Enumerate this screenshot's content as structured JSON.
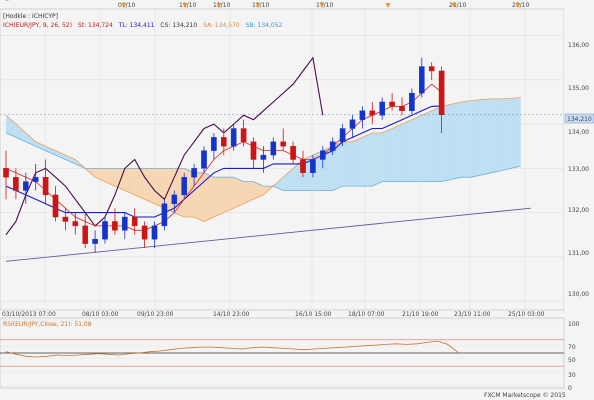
{
  "header": {
    "prefix": "[Hodkle : ICHICYP]",
    "ichimoku": "ICH(EUR/JPY, 9, 26, 52)",
    "st": "St: 134,724",
    "tl": "TL: 134,411",
    "cs": "CS: 134,210",
    "sa": "SA: 134,570",
    "sb": "SB: 134,052"
  },
  "colors": {
    "background": "#f4f4f4",
    "candle_up": "#1535c8",
    "candle_down": "#cc1515",
    "tenkan": "#dd2222",
    "kijun": "#1a1ac8",
    "chikou": "#4a0a4a",
    "cloud_bull": "#bfe0f3",
    "cloud_bear": "#f7d7b3",
    "span_a": "#e9a25e",
    "span_b": "#6ab0d9",
    "trend": "#6a5aa0",
    "rsi_line": "#c7722d",
    "level_red": "#e07070",
    "level_black": "#333333",
    "current_price_bg": "#c9dcf5"
  },
  "top_axis": {
    "labels": [
      "09/10",
      "11/10",
      "13/10",
      "15/10",
      "17/10",
      "23/10",
      "25/10"
    ],
    "marker_icon": "triangle-down-icon"
  },
  "price_axis": {
    "labels": [
      "136,00",
      "135,00",
      "134,00",
      "133,00",
      "132,00",
      "131,00",
      "130,00"
    ],
    "current_price": "134,210"
  },
  "bottom_axis": {
    "labels": [
      "03/10/2013 07:00",
      "08/10 03:00",
      "09/10 23:00",
      "14/10 23:00",
      "16/10 15:00",
      "18/10 07:00",
      "21/10 19:00",
      "23/10 11:00",
      "25/10 03:00"
    ]
  },
  "rsi": {
    "title": "RSI(EUR/JPY,Close, 21): 51,08",
    "scale_labels": [
      "100",
      "70",
      "50",
      "30",
      "0"
    ]
  },
  "watermark": "FXCM Marketscope © 2015",
  "chart_data": {
    "type": "candlestick",
    "x_labels": [
      "03/10/2013 07:00",
      "08/10 03:00",
      "09/10 23:00",
      "14/10 23:00",
      "16/10 15:00",
      "18/10 07:00",
      "21/10 19:00",
      "23/10 11:00",
      "25/10 03:00"
    ],
    "ylim": [
      129.8,
      136.6
    ],
    "grid": true,
    "candles": [
      {
        "o": 133.0,
        "h": 133.4,
        "l": 132.3,
        "c": 132.8
      },
      {
        "o": 132.8,
        "h": 133.0,
        "l": 132.3,
        "c": 132.5
      },
      {
        "o": 132.5,
        "h": 132.9,
        "l": 132.2,
        "c": 132.7
      },
      {
        "o": 132.7,
        "h": 133.1,
        "l": 132.5,
        "c": 132.8
      },
      {
        "o": 132.8,
        "h": 133.2,
        "l": 132.2,
        "c": 132.4
      },
      {
        "o": 132.4,
        "h": 132.6,
        "l": 131.8,
        "c": 131.9
      },
      {
        "o": 131.9,
        "h": 132.1,
        "l": 131.6,
        "c": 131.8
      },
      {
        "o": 131.8,
        "h": 132.0,
        "l": 131.5,
        "c": 131.7
      },
      {
        "o": 131.7,
        "h": 132.0,
        "l": 131.2,
        "c": 131.3
      },
      {
        "o": 131.3,
        "h": 131.6,
        "l": 131.1,
        "c": 131.4
      },
      {
        "o": 131.4,
        "h": 131.9,
        "l": 131.3,
        "c": 131.8
      },
      {
        "o": 131.8,
        "h": 132.1,
        "l": 131.5,
        "c": 131.6
      },
      {
        "o": 131.6,
        "h": 132.0,
        "l": 131.4,
        "c": 131.9
      },
      {
        "o": 131.9,
        "h": 132.1,
        "l": 131.5,
        "c": 131.7
      },
      {
        "o": 131.7,
        "h": 131.8,
        "l": 131.2,
        "c": 131.4
      },
      {
        "o": 131.4,
        "h": 131.8,
        "l": 131.2,
        "c": 131.7
      },
      {
        "o": 131.7,
        "h": 132.3,
        "l": 131.6,
        "c": 132.2
      },
      {
        "o": 132.2,
        "h": 132.5,
        "l": 132.0,
        "c": 132.4
      },
      {
        "o": 132.4,
        "h": 132.9,
        "l": 132.3,
        "c": 132.8
      },
      {
        "o": 132.8,
        "h": 133.1,
        "l": 132.6,
        "c": 133.0
      },
      {
        "o": 133.0,
        "h": 133.5,
        "l": 132.9,
        "c": 133.4
      },
      {
        "o": 133.4,
        "h": 133.8,
        "l": 133.2,
        "c": 133.7
      },
      {
        "o": 133.7,
        "h": 133.9,
        "l": 133.3,
        "c": 133.5
      },
      {
        "o": 133.5,
        "h": 134.0,
        "l": 133.4,
        "c": 133.9
      },
      {
        "o": 133.9,
        "h": 134.1,
        "l": 133.5,
        "c": 133.6
      },
      {
        "o": 133.6,
        "h": 133.7,
        "l": 133.0,
        "c": 133.2
      },
      {
        "o": 133.2,
        "h": 133.5,
        "l": 132.9,
        "c": 133.3
      },
      {
        "o": 133.3,
        "h": 133.7,
        "l": 133.2,
        "c": 133.6
      },
      {
        "o": 133.6,
        "h": 133.9,
        "l": 133.4,
        "c": 133.5
      },
      {
        "o": 133.5,
        "h": 133.6,
        "l": 133.1,
        "c": 133.2
      },
      {
        "o": 133.2,
        "h": 133.4,
        "l": 132.8,
        "c": 132.9
      },
      {
        "o": 132.9,
        "h": 133.3,
        "l": 132.8,
        "c": 133.2
      },
      {
        "o": 133.2,
        "h": 133.5,
        "l": 133.0,
        "c": 133.4
      },
      {
        "o": 133.4,
        "h": 133.7,
        "l": 133.3,
        "c": 133.6
      },
      {
        "o": 133.6,
        "h": 134.0,
        "l": 133.5,
        "c": 133.9
      },
      {
        "o": 133.9,
        "h": 134.2,
        "l": 133.7,
        "c": 134.1
      },
      {
        "o": 134.1,
        "h": 134.4,
        "l": 133.9,
        "c": 134.3
      },
      {
        "o": 134.3,
        "h": 134.5,
        "l": 134.0,
        "c": 134.2
      },
      {
        "o": 134.2,
        "h": 134.6,
        "l": 134.1,
        "c": 134.5
      },
      {
        "o": 134.5,
        "h": 134.7,
        "l": 134.3,
        "c": 134.4
      },
      {
        "o": 134.4,
        "h": 134.6,
        "l": 134.2,
        "c": 134.3
      },
      {
        "o": 134.3,
        "h": 134.8,
        "l": 134.2,
        "c": 134.7
      },
      {
        "o": 134.7,
        "h": 135.5,
        "l": 134.6,
        "c": 135.3
      },
      {
        "o": 135.3,
        "h": 135.4,
        "l": 135.0,
        "c": 135.2
      },
      {
        "o": 135.2,
        "h": 135.3,
        "l": 133.8,
        "c": 134.21
      }
    ],
    "tenkan": [
      133.0,
      132.9,
      132.8,
      132.7,
      132.5,
      132.3,
      132.1,
      131.9,
      131.8,
      131.7,
      131.7,
      131.7,
      131.7,
      131.6,
      131.6,
      131.7,
      131.8,
      132.0,
      132.3,
      132.6,
      132.9,
      133.2,
      133.4,
      133.5,
      133.6,
      133.5,
      133.4,
      133.4,
      133.4,
      133.3,
      133.2,
      133.2,
      133.3,
      133.5,
      133.7,
      133.9,
      134.1,
      134.2,
      134.3,
      134.4,
      134.4,
      134.5,
      134.7,
      134.9,
      134.72
    ],
    "kijun": [
      132.6,
      132.5,
      132.4,
      132.3,
      132.2,
      132.1,
      132.0,
      132.0,
      132.0,
      132.0,
      132.0,
      132.0,
      132.0,
      131.9,
      131.9,
      131.9,
      132.0,
      132.1,
      132.3,
      132.5,
      132.7,
      132.9,
      133.0,
      133.0,
      133.0,
      133.0,
      133.0,
      133.1,
      133.1,
      133.1,
      133.1,
      133.2,
      133.3,
      133.4,
      133.6,
      133.7,
      133.8,
      133.9,
      133.9,
      134.0,
      134.1,
      134.2,
      134.3,
      134.4,
      134.411
    ],
    "span_a": [
      134.2,
      134.0,
      133.8,
      133.6,
      133.5,
      133.4,
      133.3,
      133.2,
      133.0,
      132.8,
      132.7,
      132.6,
      132.5,
      132.4,
      132.3,
      132.2,
      132.1,
      132.0,
      131.9,
      131.9,
      131.8,
      131.9,
      132.0,
      132.1,
      132.2,
      132.3,
      132.4,
      132.6,
      132.8,
      133.0,
      133.2,
      133.3,
      133.4,
      133.5,
      133.6,
      133.6,
      133.7,
      133.8,
      133.8,
      133.9,
      134.0,
      134.1,
      134.2,
      134.3,
      134.4,
      134.45,
      134.5,
      134.53,
      134.55,
      134.57,
      134.57,
      134.58,
      134.6
    ],
    "span_b": [
      133.8,
      133.7,
      133.6,
      133.5,
      133.4,
      133.3,
      133.2,
      133.1,
      133.0,
      133.0,
      133.0,
      133.0,
      133.0,
      133.0,
      133.0,
      133.0,
      133.0,
      133.0,
      133.0,
      132.9,
      132.9,
      132.8,
      132.8,
      132.8,
      132.7,
      132.7,
      132.6,
      132.6,
      132.5,
      132.5,
      132.5,
      132.5,
      132.5,
      132.5,
      132.6,
      132.6,
      132.6,
      132.6,
      132.7,
      132.7,
      132.7,
      132.7,
      132.7,
      132.7,
      132.7,
      132.75,
      132.8,
      132.8,
      132.85,
      132.9,
      132.95,
      133.0,
      133.05
    ],
    "chikou": [
      131.5,
      131.8,
      132.4,
      132.9,
      133.0,
      132.8,
      132.6,
      132.3,
      132.0,
      131.7,
      131.9,
      132.4,
      133.0,
      133.2,
      132.8,
      132.5,
      132.3,
      132.8,
      133.3,
      133.6,
      133.9,
      134.0,
      133.8,
      134.0,
      134.2,
      134.1,
      134.3,
      134.5,
      134.7,
      134.9,
      135.2,
      135.5,
      134.2
    ],
    "trend_lines": [
      {
        "from": {
          "bar": 0,
          "y": 130.9
        },
        "to": {
          "bar": 53,
          "y": 132.1
        }
      },
      {
        "from": {
          "bar": 0,
          "y": 136.8
        },
        "to": {
          "bar": 8,
          "y": 137.1
        }
      }
    ],
    "rsi": {
      "ylim": [
        0,
        100
      ],
      "levels": [
        70,
        50,
        30
      ],
      "values": [
        52,
        48,
        45,
        44,
        45,
        47,
        46,
        47,
        48,
        49,
        48,
        47,
        49,
        50,
        52,
        53,
        55,
        57,
        58,
        59,
        59,
        58,
        57,
        56,
        58,
        59,
        58,
        57,
        56,
        55,
        56,
        57,
        58,
        59,
        60,
        61,
        62,
        63,
        64,
        63,
        64,
        66,
        68,
        63,
        51.08
      ]
    }
  }
}
